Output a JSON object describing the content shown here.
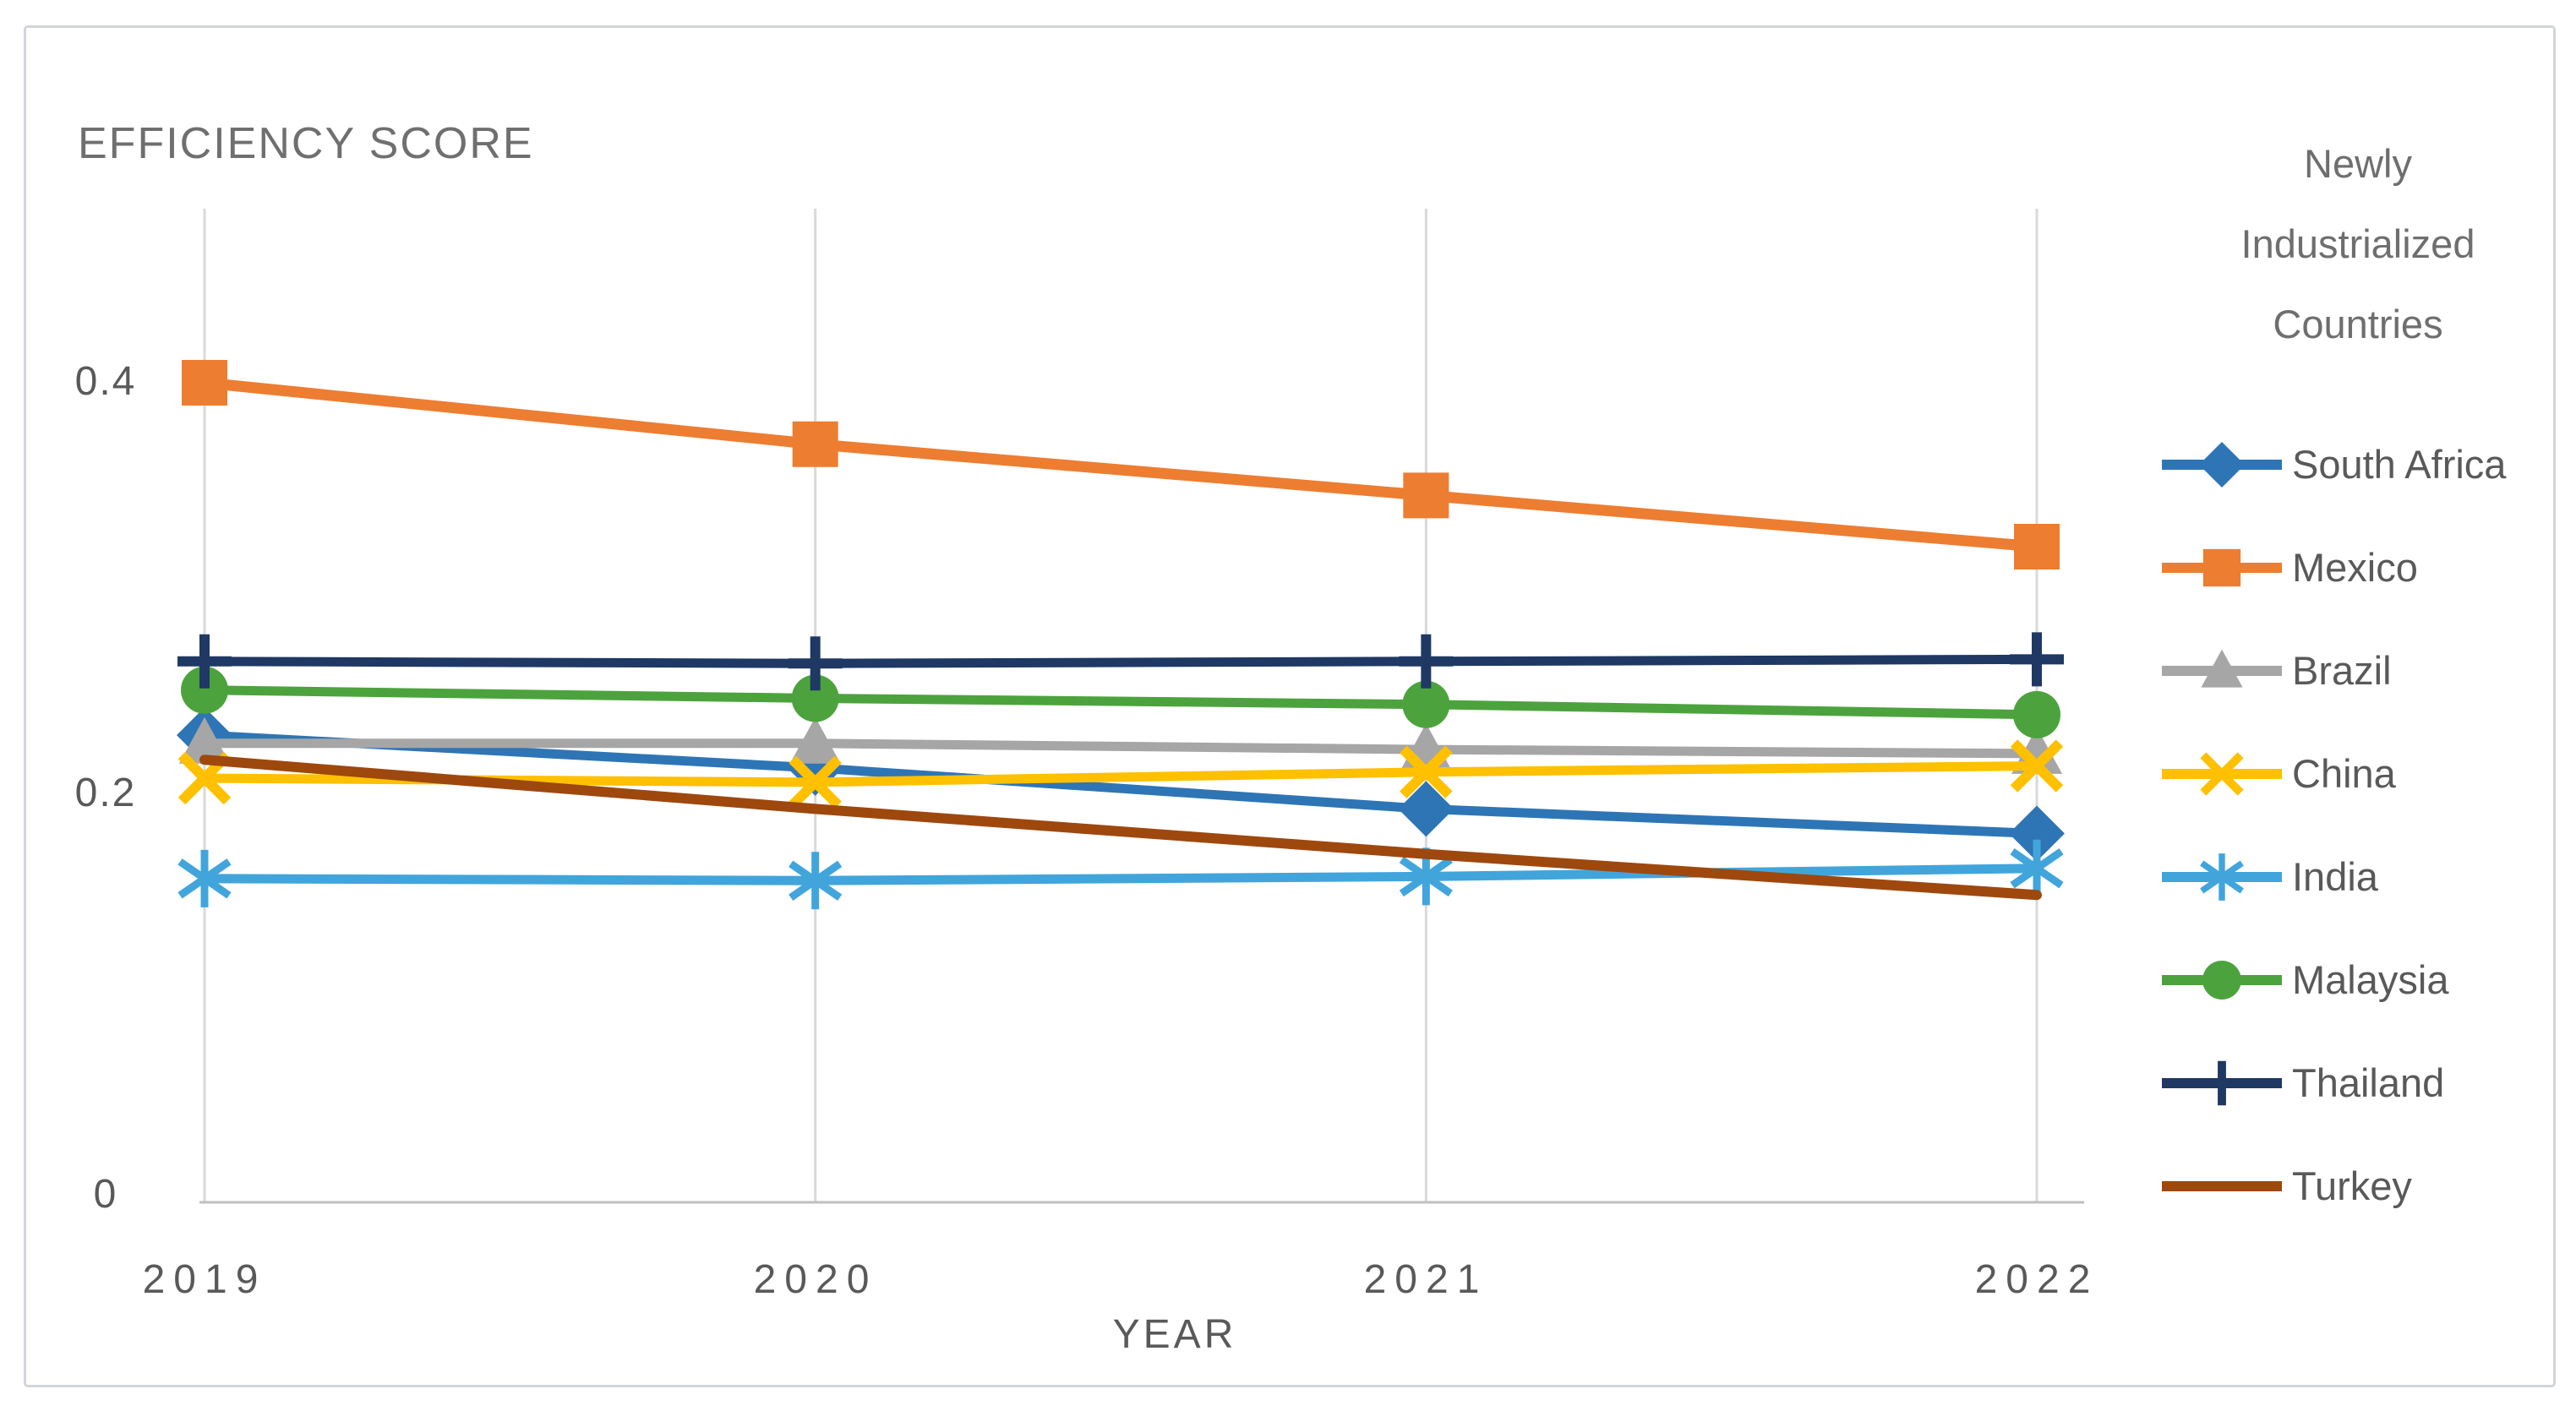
{
  "figure": {
    "title": "EFFICIENCY SCORE"
  },
  "axes": {
    "x_title": "YEAR",
    "x_ticks": [
      "2019",
      "2020",
      "2021",
      "2022"
    ],
    "y_ticks": [
      "0.4",
      "0.2",
      "0"
    ]
  },
  "legend": {
    "title_lines": [
      "Newly",
      "Industrialized",
      "Countries"
    ]
  },
  "chart_data": {
    "type": "line",
    "title": "EFFICIENCY SCORE",
    "xlabel": "YEAR",
    "ylabel": "EFFICIENCY SCORE",
    "x": [
      2019,
      2020,
      2021,
      2022
    ],
    "ylim": [
      0,
      0.45
    ],
    "yticks": [
      0,
      0.2,
      0.4
    ],
    "grid": "vertical-only",
    "gridline_color": "#D9D9D9",
    "axis_line_color": "#BFBFBF",
    "legend_position": "right",
    "legend_title": "Newly Industrialized Countries",
    "series": [
      {
        "name": "South Africa",
        "color": "#2E75B6",
        "marker": "diamond",
        "values": [
          0.228,
          0.212,
          0.192,
          0.18
        ]
      },
      {
        "name": "Mexico",
        "color": "#ED7D31",
        "marker": "square",
        "values": [
          0.4,
          0.37,
          0.345,
          0.32
        ]
      },
      {
        "name": "Brazil",
        "color": "#A6A6A6",
        "marker": "triangle",
        "values": [
          0.224,
          0.224,
          0.221,
          0.219
        ]
      },
      {
        "name": "China",
        "color": "#FFC000",
        "marker": "x",
        "values": [
          0.207,
          0.205,
          0.21,
          0.213
        ]
      },
      {
        "name": "India",
        "color": "#41A5DC",
        "marker": "asterisk",
        "values": [
          0.158,
          0.157,
          0.159,
          0.163
        ]
      },
      {
        "name": "Malaysia",
        "color": "#4CA33D",
        "marker": "circle",
        "values": [
          0.25,
          0.246,
          0.243,
          0.238
        ]
      },
      {
        "name": "Thailand",
        "color": "#1F3864",
        "marker": "plus",
        "values": [
          0.264,
          0.263,
          0.264,
          0.265
        ]
      },
      {
        "name": "Turkey",
        "color": "#9E480E",
        "marker": "none",
        "values": [
          0.216,
          0.192,
          0.17,
          0.15
        ]
      }
    ]
  }
}
